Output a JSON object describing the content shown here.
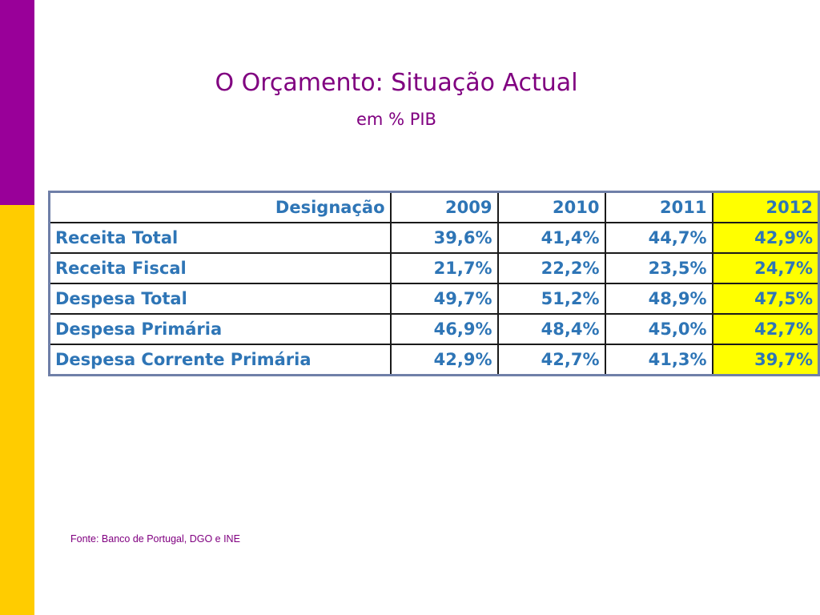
{
  "colors": {
    "purple_band": "#990099",
    "yellow_band": "#ffcc00",
    "title_text": "#800080",
    "table_text": "#2e75b6",
    "highlight": "#ffff00",
    "source_text": "#800080"
  },
  "slide": {
    "title": "O Orçamento: Situação Actual",
    "subtitle": "em % PIB"
  },
  "table": {
    "headers": [
      "Designação",
      "2009",
      "2010",
      "2011",
      "2012"
    ],
    "highlighted_column": "2012",
    "rows": [
      {
        "label": "Receita Total",
        "values": [
          "39,6%",
          "41,4%",
          "44,7%",
          "42,9%"
        ]
      },
      {
        "label": "Receita Fiscal",
        "values": [
          "21,7%",
          "22,2%",
          "23,5%",
          "24,7%"
        ]
      },
      {
        "label": "Despesa Total",
        "values": [
          "49,7%",
          "51,2%",
          "48,9%",
          "47,5%"
        ]
      },
      {
        "label": "Despesa Primária",
        "values": [
          "46,9%",
          "48,4%",
          "45,0%",
          "42,7%"
        ]
      },
      {
        "label": "Despesa Corrente Primária",
        "values": [
          "42,9%",
          "42,7%",
          "41,3%",
          "39,7%"
        ]
      }
    ]
  },
  "source": "Fonte: Banco de Portugal, DGO e INE"
}
